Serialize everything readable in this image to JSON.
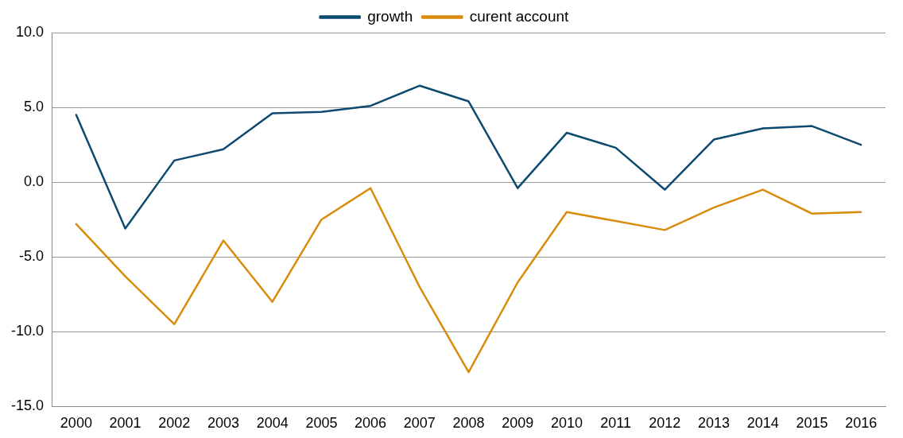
{
  "chart_data": {
    "type": "line",
    "categories": [
      "2000",
      "2001",
      "2002",
      "2003",
      "2004",
      "2005",
      "2006",
      "2007",
      "2008",
      "2009",
      "2010",
      "2011",
      "2012",
      "2013",
      "2014",
      "2015",
      "2016"
    ],
    "series": [
      {
        "name": "growth",
        "color": "#0d4a70",
        "values": [
          4.5,
          -3.1,
          1.45,
          2.2,
          4.6,
          4.7,
          5.1,
          6.45,
          5.4,
          -0.4,
          3.3,
          2.3,
          -0.5,
          2.85,
          3.6,
          3.75,
          2.5
        ]
      },
      {
        "name": "curent account",
        "color": "#d98c0b",
        "values": [
          -2.8,
          -6.3,
          -9.5,
          -3.9,
          -8.0,
          -2.5,
          -0.4,
          -7.0,
          -12.7,
          -6.7,
          -2.0,
          -2.6,
          -3.2,
          -1.7,
          -0.5,
          -2.1,
          -2.0
        ]
      }
    ],
    "ylim": [
      -15,
      10
    ],
    "yticks": [
      {
        "value": -15,
        "label": "-15.0"
      },
      {
        "value": -10,
        "label": "-10.0"
      },
      {
        "value": -5,
        "label": "-5.0"
      },
      {
        "value": 0,
        "label": "0.0"
      },
      {
        "value": 5,
        "label": "5.0"
      },
      {
        "value": 10,
        "label": "10.0"
      }
    ],
    "grid": "y",
    "legend": "top",
    "marker": "none",
    "line_style": "solid"
  }
}
